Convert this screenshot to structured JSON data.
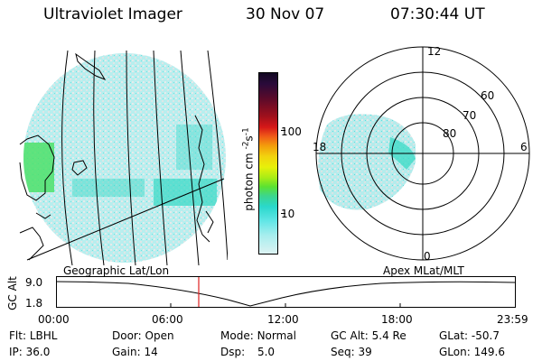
{
  "header": {
    "instrument": "Ultraviolet Imager",
    "date": "30 Nov 07",
    "time": "07:30:44 UT"
  },
  "colorbar": {
    "unit_label": "photon cm",
    "unit_exp1": "-2",
    "unit_s": "s",
    "unit_exp2": "-1",
    "ticks": [
      "100",
      "10"
    ],
    "colors_top_to_bottom": [
      "#1a0a2e",
      "#3a0830",
      "#6a0a20",
      "#a0101e",
      "#d41a1a",
      "#f0501a",
      "#f08a0a",
      "#f2c80e",
      "#e8f00a",
      "#b4ec14",
      "#6ce42a",
      "#3cd48c",
      "#2cd8c8",
      "#6ae8e8",
      "#a8f0f0",
      "#d8f4f4"
    ]
  },
  "left_panel": {
    "caption": "Geographic Lat/Lon"
  },
  "right_panel": {
    "caption": "Apex MLat/MLT",
    "mlt_labels": {
      "top": "12",
      "left": "18",
      "right": "6",
      "bottom": "0"
    },
    "lat_labels": [
      "60",
      "70",
      "80"
    ]
  },
  "timeline": {
    "ylabel": "GC Alt",
    "yticks": [
      "9.0",
      "1.8"
    ],
    "xticks": [
      "00:00",
      "06:00",
      "12:00",
      "18:00",
      "23:59"
    ],
    "marker_time": "07:30"
  },
  "info": {
    "flt_label": "Flt:",
    "flt_value": "LBHL",
    "ip_label": "IP:",
    "ip_value": "36.0",
    "door_label": "Door:",
    "door_value": "Open",
    "gain_label": "Gain:",
    "gain_value": "14",
    "mode_label": "Mode:",
    "mode_value": "Normal",
    "dsp_label": "Dsp:",
    "dsp_value": "5.0",
    "gcalt_label": "GC Alt:",
    "gcalt_value": "5.4 Re",
    "seq_label": "Seq:",
    "seq_value": "39",
    "glat_label": "GLat:",
    "glat_value": "-50.7",
    "glon_label": "GLon:",
    "glon_value": "149.6"
  }
}
